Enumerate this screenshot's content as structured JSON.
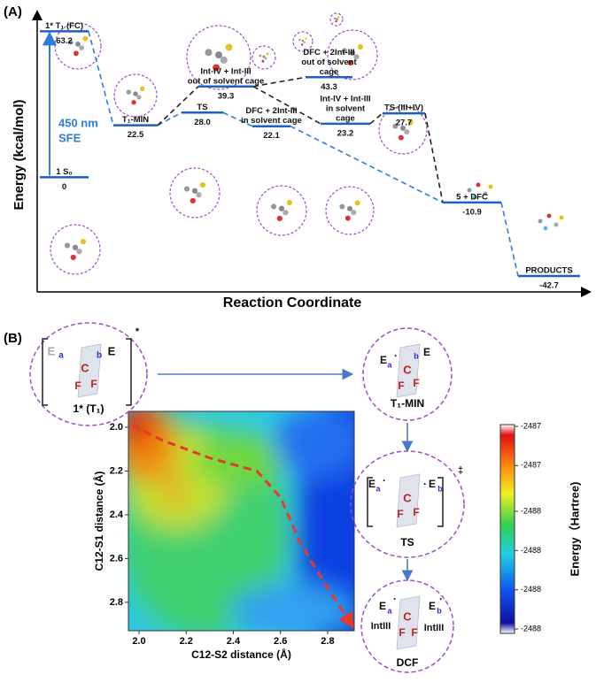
{
  "chart_data": [
    {
      "type": "energy_profile",
      "panel_label": "(A)",
      "y_label": "Energy (kcal/mol)",
      "x_label": "Reaction Coordinate",
      "annotation": [
        "450 nm",
        "SFE"
      ],
      "annotation_color": "#2b7de0",
      "categories": [
        [
          "1 S₀"
        ],
        [
          "1* T₁ (FC)"
        ],
        [
          "T₁-MIN"
        ],
        [
          "TS"
        ],
        [
          "DFC + 2Int-III",
          "in solvent cage"
        ],
        [
          "Int-IV + Int-III",
          "out of solvent cage"
        ],
        [
          "DFC + 2Int-III",
          "out of solvent",
          "cage"
        ],
        [
          "Int-IV + Int-III",
          "in solvent",
          "cage"
        ],
        [
          "TS-(III+IV)"
        ],
        [
          "5 + DFC"
        ],
        [
          "PRODUCTS"
        ]
      ],
      "values": [
        0,
        63.2,
        22.5,
        28.0,
        22.1,
        39.3,
        43.3,
        23.2,
        27.7,
        -10.9,
        -42.7
      ],
      "value_labels": [
        "0",
        "63.2",
        "22.5",
        "28.0",
        "22.1",
        "39.3",
        "43.3",
        "23.2",
        "27.7",
        "-10.9",
        "-42.7"
      ],
      "ylim": [
        -45,
        66
      ],
      "level_color": "#1f5fbf",
      "primary_color": "#2b7de0",
      "secondary_color": "#222222"
    },
    {
      "type": "heatmap",
      "panel_label": "(B)",
      "x_label": "C12-S2 distance (Å)",
      "y_label": "C12-S1 distance (Å)",
      "xlim": [
        1.955,
        2.913
      ],
      "ylim": [
        1.927,
        2.93
      ],
      "y_inverted": true,
      "xticks": [
        {
          "value": 2.0,
          "label": "2.0"
        },
        2.2,
        2.4,
        2.6,
        2.8
      ],
      "yticks": [
        {
          "value": 2.0,
          "label": "2.0"
        },
        2.2,
        2.4,
        2.6,
        2.8
      ],
      "path": {
        "x": [
          1.97,
          2.1,
          2.3,
          2.5,
          2.6,
          2.68,
          2.78,
          2.9
        ],
        "y": [
          1.99,
          2.06,
          2.14,
          2.2,
          2.32,
          2.52,
          2.7,
          2.9
        ],
        "color": "#e53a2a"
      },
      "colorbar": {
        "label": "Energy（Hartree)",
        "clim": [
          -2488.47,
          -2486.9
        ],
        "ticks": [
          {
            "value": -2486.9,
            "label": "-2487"
          },
          {
            "value": -2487.2,
            "label": "-2487"
          },
          {
            "value": -2487.55,
            "label": "-2488"
          },
          {
            "value": -2487.85,
            "label": "-2488"
          },
          {
            "value": -2488.15,
            "label": "-2488"
          },
          {
            "value": -2488.45,
            "label": "-2488"
          }
        ]
      }
    }
  ],
  "schematic": {
    "nodes": [
      {
        "label": "1* (T₁)",
        "parts": [
          "E",
          "a",
          "b",
          "E",
          "C",
          "F",
          "F",
          "*"
        ]
      },
      {
        "label": "T₁-MIN",
        "parts": [
          "E",
          "a",
          "·",
          "b",
          "E",
          "C",
          "F",
          "F"
        ]
      },
      {
        "label": "TS",
        "parts": [
          "E",
          "a",
          "·",
          "·",
          "E",
          "b",
          "C",
          "F",
          "F",
          "‡"
        ]
      },
      {
        "label": "DCF",
        "parts": [
          "E",
          "a",
          "·",
          "E",
          "b",
          "·",
          "C",
          "F",
          "F",
          "IntIII",
          "IntIII"
        ]
      }
    ]
  }
}
